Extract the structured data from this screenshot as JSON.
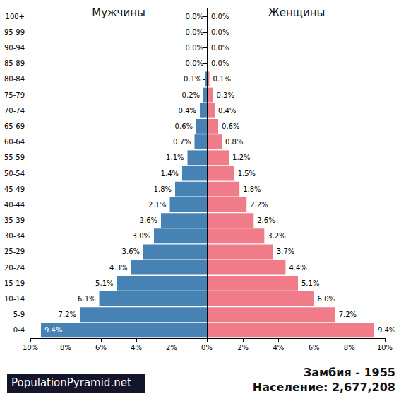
{
  "chart_data": {
    "type": "bar",
    "orientation": "horizontal",
    "title": "Замбия - 1955",
    "subtitle": "Население: 2,677,208",
    "annotations": [
      "PopulationPyramid.net"
    ],
    "categories": [
      "100+",
      "95-99",
      "90-94",
      "85-89",
      "80-84",
      "75-79",
      "70-74",
      "65-69",
      "60-64",
      "55-59",
      "50-54",
      "45-49",
      "40-44",
      "35-39",
      "30-34",
      "25-29",
      "20-24",
      "15-19",
      "10-14",
      "5-9",
      "0-4"
    ],
    "series": [
      {
        "name": "Мужчины",
        "color": "#4682b4",
        "values": [
          0.0,
          0.0,
          0.0,
          0.0,
          0.1,
          0.2,
          0.4,
          0.6,
          0.7,
          1.1,
          1.4,
          1.8,
          2.1,
          2.6,
          3.0,
          3.6,
          4.3,
          5.1,
          6.1,
          7.2,
          9.4
        ],
        "value_labels": [
          "0.0%",
          "0.0%",
          "0.0%",
          "0.0%",
          "0.1%",
          "0.2%",
          "0.4%",
          "0.6%",
          "0.7%",
          "1.1%",
          "1.4%",
          "1.8%",
          "2.1%",
          "2.6%",
          "3.0%",
          "3.6%",
          "4.3%",
          "5.1%",
          "6.1%",
          "7.2%",
          "9.4%"
        ]
      },
      {
        "name": "Женщины",
        "color": "#f07b89",
        "values": [
          0.0,
          0.0,
          0.0,
          0.0,
          0.1,
          0.3,
          0.4,
          0.6,
          0.8,
          1.2,
          1.5,
          1.8,
          2.2,
          2.6,
          3.2,
          3.7,
          4.4,
          5.1,
          6.0,
          7.2,
          9.4
        ],
        "value_labels": [
          "0.0%",
          "0.0%",
          "0.0%",
          "0.0%",
          "0.1%",
          "0.3%",
          "0.4%",
          "0.6%",
          "0.8%",
          "1.2%",
          "1.5%",
          "1.8%",
          "2.2%",
          "2.6%",
          "3.2%",
          "3.7%",
          "4.4%",
          "5.1%",
          "6.0%",
          "7.2%",
          "9.4%"
        ]
      }
    ],
    "xlim": [
      0,
      10
    ],
    "xticks": [
      {
        "value": 0,
        "label": "0%"
      },
      {
        "value": 2,
        "label": "2%"
      },
      {
        "value": 4,
        "label": "4%"
      },
      {
        "value": 6,
        "label": "6%"
      },
      {
        "value": 8,
        "label": "8%"
      },
      {
        "value": 10,
        "label": "10%"
      }
    ],
    "data_labels": true,
    "grid": false
  }
}
